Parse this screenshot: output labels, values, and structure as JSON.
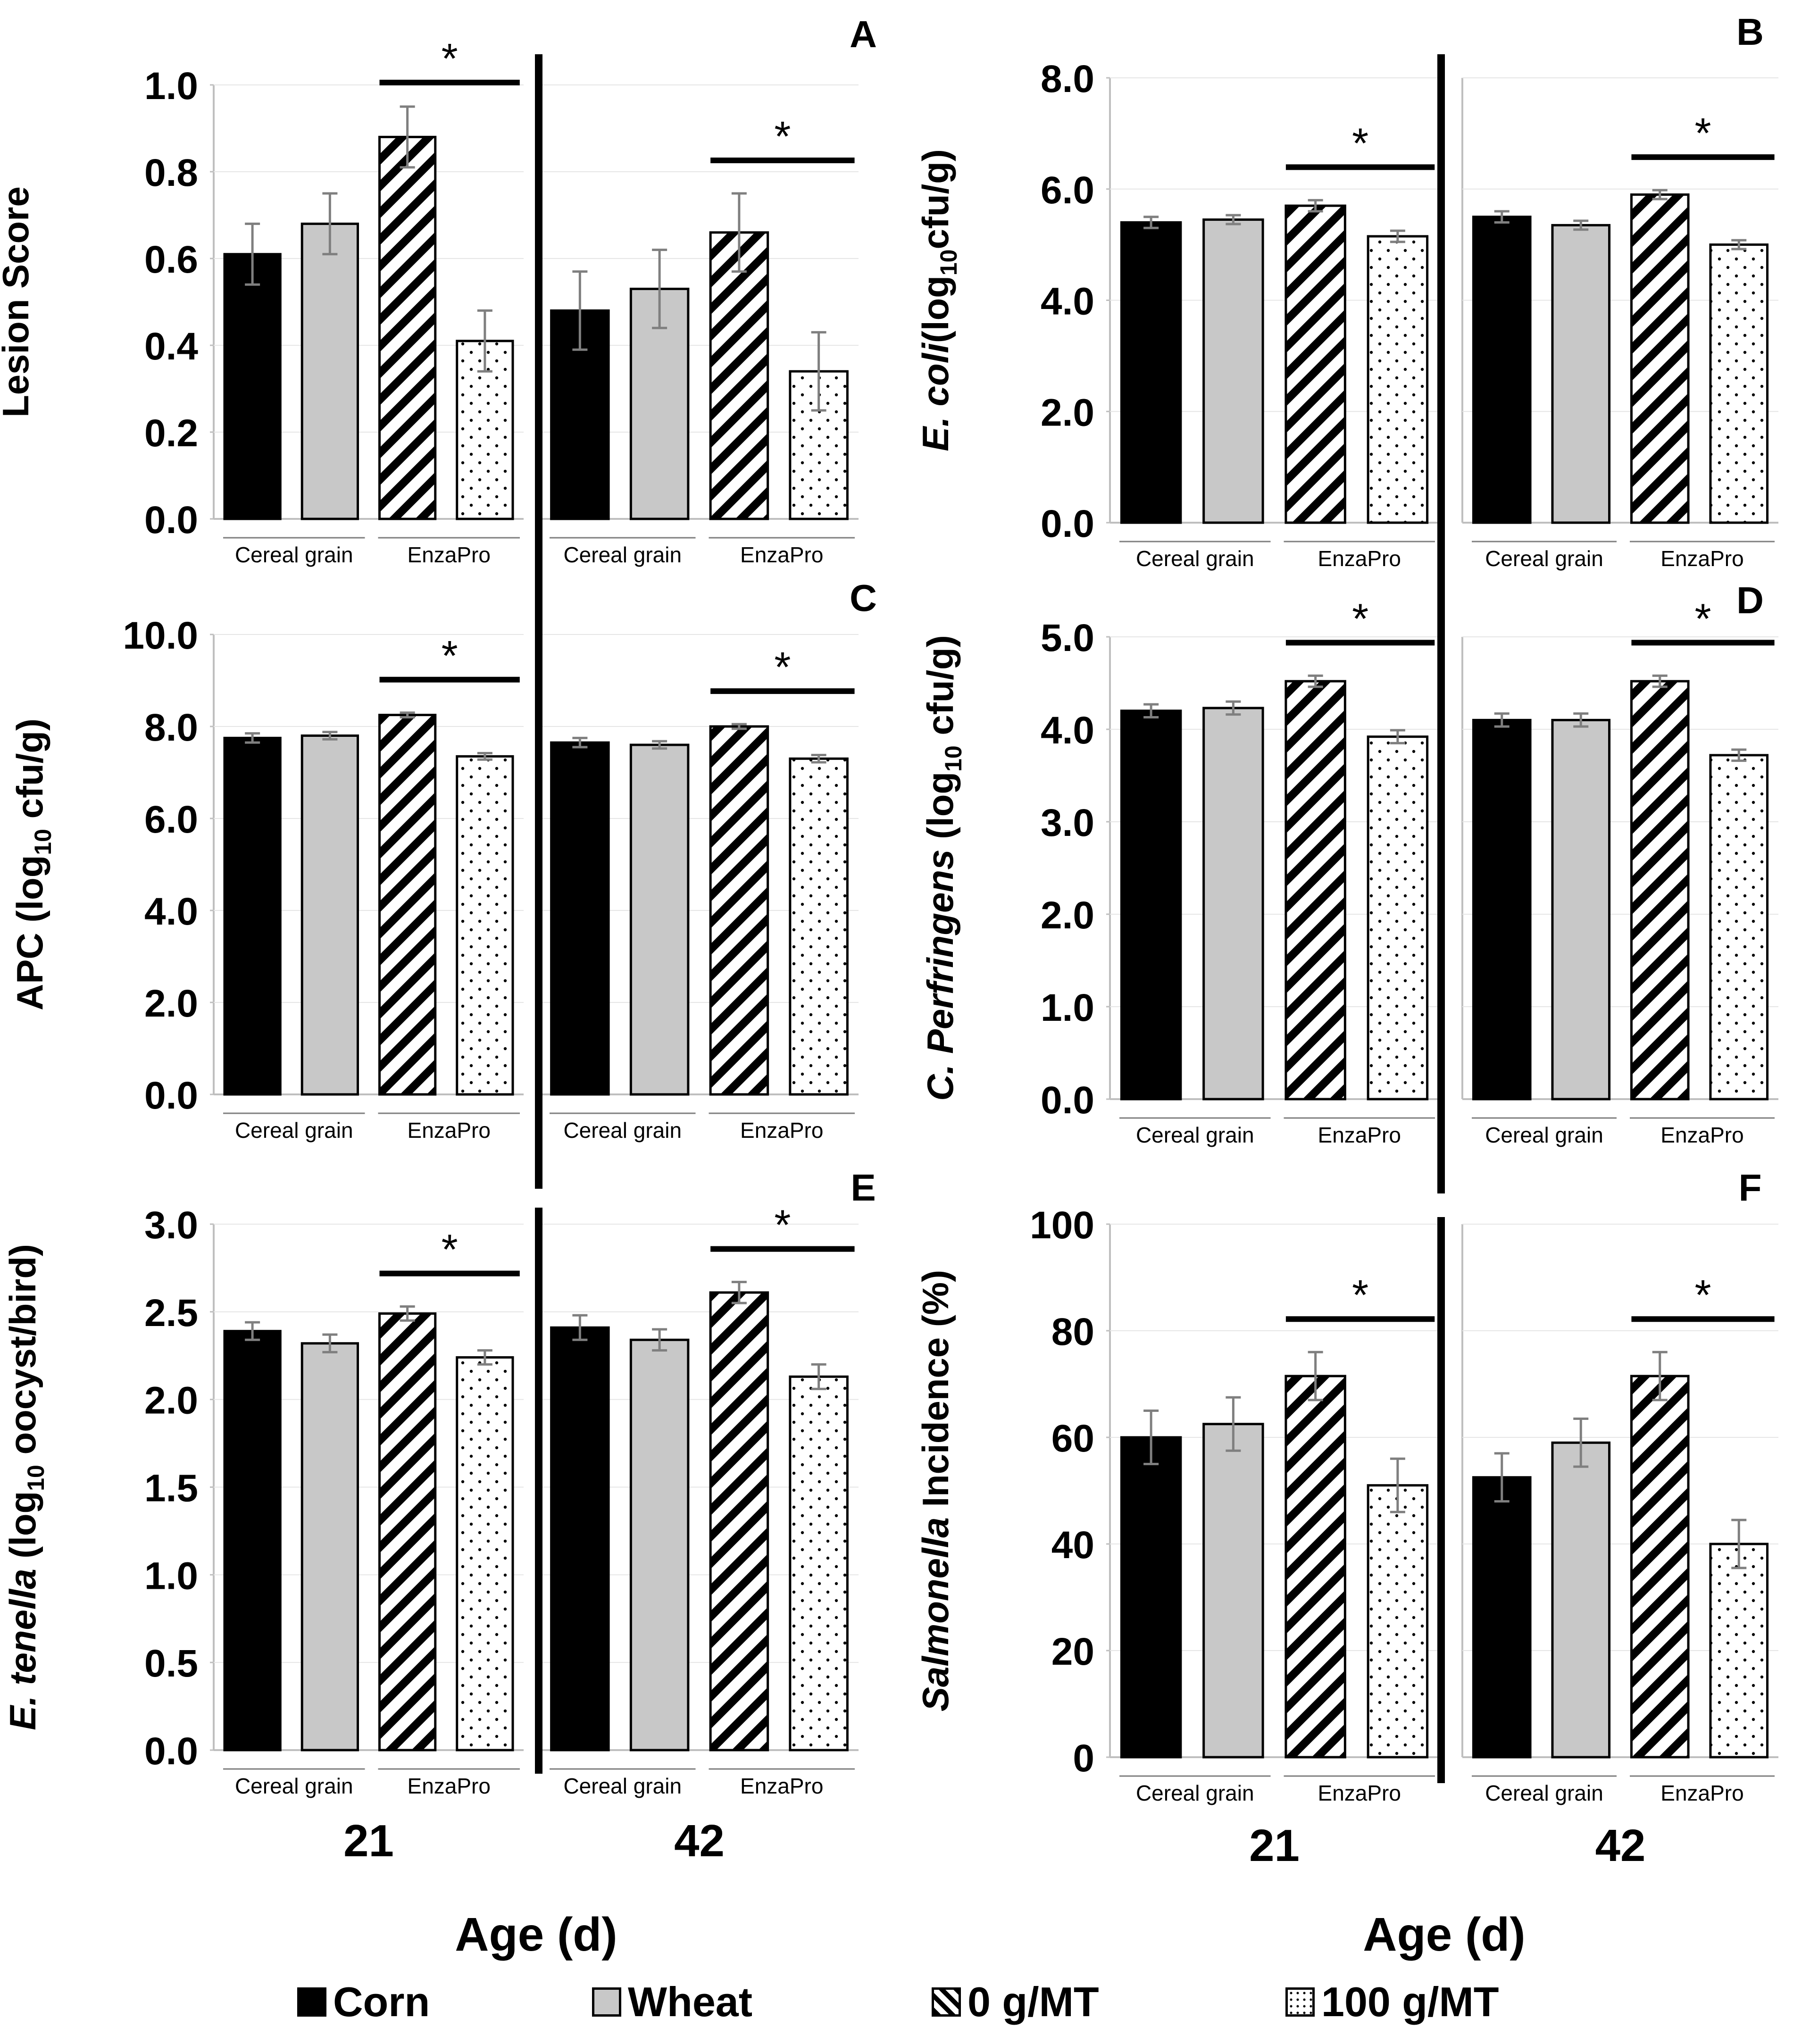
{
  "colors": {
    "corn": "#000000",
    "wheat": "#c8c8c8",
    "bar_stroke": "#000000",
    "error_bar": "#7f7f7f"
  },
  "legend": [
    {
      "label": "Corn",
      "fill": "solid-black"
    },
    {
      "label": "Wheat",
      "fill": "solid-gray"
    },
    {
      "label": "0 g/MT",
      "fill": "diagonal-stripes"
    },
    {
      "label": "100 g/MT",
      "fill": "dots"
    }
  ],
  "common": {
    "age_labels": [
      "21",
      "42"
    ],
    "group_labels": [
      "Cereal grain",
      "EnzaPro"
    ],
    "x_title": "Age (d)",
    "significance_mark": "*"
  },
  "chart_data": [
    {
      "panel": "A",
      "type": "bar",
      "ylabel": "Lesion Score",
      "ylim": [
        0,
        1.0
      ],
      "yticks": [
        "0.0",
        "0.2",
        "0.4",
        "0.6",
        "0.8",
        "1.0"
      ],
      "series": [
        {
          "name": "Corn",
          "values": [
            0.61,
            0.48
          ],
          "errors": [
            0.07,
            0.09
          ]
        },
        {
          "name": "Wheat",
          "values": [
            0.68,
            0.53
          ],
          "errors": [
            0.07,
            0.09
          ]
        },
        {
          "name": "0 g/MT",
          "values": [
            0.88,
            0.66
          ],
          "errors": [
            0.07,
            0.09
          ]
        },
        {
          "name": "100 g/MT",
          "values": [
            0.41,
            0.34
          ],
          "errors": [
            0.07,
            0.09
          ]
        }
      ]
    },
    {
      "panel": "B",
      "type": "bar",
      "ylabel_parts": [
        "E. coli",
        "(log",
        "10",
        "cfu/g)"
      ],
      "ylim": [
        0,
        8.0
      ],
      "yticks": [
        "0.0",
        "2.0",
        "4.0",
        "6.0",
        "8.0"
      ],
      "series": [
        {
          "name": "Corn",
          "values": [
            5.4,
            5.5
          ],
          "errors": [
            0.1,
            0.1
          ]
        },
        {
          "name": "Wheat",
          "values": [
            5.45,
            5.35
          ],
          "errors": [
            0.08,
            0.08
          ]
        },
        {
          "name": "0 g/MT",
          "values": [
            5.7,
            5.9
          ],
          "errors": [
            0.1,
            0.08
          ]
        },
        {
          "name": "100 g/MT",
          "values": [
            5.15,
            5.0
          ],
          "errors": [
            0.1,
            0.08
          ]
        }
      ]
    },
    {
      "panel": "C",
      "type": "bar",
      "ylabel_parts": [
        "APC (log",
        "10",
        " cfu/g)"
      ],
      "ylim": [
        0,
        10.0
      ],
      "yticks": [
        "0.0",
        "2.0",
        "4.0",
        "6.0",
        "8.0",
        "10.0"
      ],
      "series": [
        {
          "name": "Corn",
          "values": [
            7.75,
            7.65
          ],
          "errors": [
            0.1,
            0.1
          ]
        },
        {
          "name": "Wheat",
          "values": [
            7.8,
            7.6
          ],
          "errors": [
            0.08,
            0.08
          ]
        },
        {
          "name": "0 g/MT",
          "values": [
            8.25,
            8.0
          ],
          "errors": [
            0.05,
            0.05
          ]
        },
        {
          "name": "100 g/MT",
          "values": [
            7.35,
            7.3
          ],
          "errors": [
            0.07,
            0.08
          ]
        }
      ]
    },
    {
      "panel": "D",
      "type": "bar",
      "ylabel_parts": [
        "C. Perfringens",
        " (log",
        "10",
        " cfu/g)"
      ],
      "ylim": [
        0,
        5.0
      ],
      "yticks": [
        "0.0",
        "1.0",
        "2.0",
        "3.0",
        "4.0",
        "5.0"
      ],
      "series": [
        {
          "name": "Corn",
          "values": [
            4.2,
            4.1
          ],
          "errors": [
            0.07,
            0.07
          ]
        },
        {
          "name": "Wheat",
          "values": [
            4.23,
            4.1
          ],
          "errors": [
            0.07,
            0.07
          ]
        },
        {
          "name": "0 g/MT",
          "values": [
            4.52,
            4.52
          ],
          "errors": [
            0.06,
            0.06
          ]
        },
        {
          "name": "100 g/MT",
          "values": [
            3.92,
            3.72
          ],
          "errors": [
            0.07,
            0.06
          ]
        }
      ]
    },
    {
      "panel": "E",
      "type": "bar",
      "ylabel_parts": [
        "E. tenella",
        " (log",
        "10",
        " oocyst/bird)"
      ],
      "ylim": [
        0,
        3.0
      ],
      "yticks": [
        "0.0",
        "0.5",
        "1.0",
        "1.5",
        "2.0",
        "2.5",
        "3.0"
      ],
      "series": [
        {
          "name": "Corn",
          "values": [
            2.39,
            2.41
          ],
          "errors": [
            0.05,
            0.07
          ]
        },
        {
          "name": "Wheat",
          "values": [
            2.32,
            2.34
          ],
          "errors": [
            0.05,
            0.06
          ]
        },
        {
          "name": "0 g/MT",
          "values": [
            2.49,
            2.61
          ],
          "errors": [
            0.04,
            0.06
          ]
        },
        {
          "name": "100 g/MT",
          "values": [
            2.24,
            2.13
          ],
          "errors": [
            0.04,
            0.07
          ]
        }
      ]
    },
    {
      "panel": "F",
      "type": "bar",
      "ylabel_parts": [
        "Salmonella",
        " Incidence (%)"
      ],
      "ylim": [
        0,
        100
      ],
      "yticks": [
        "0",
        "20",
        "40",
        "60",
        "80",
        "100"
      ],
      "series": [
        {
          "name": "Corn",
          "values": [
            60,
            52.5
          ],
          "errors": [
            5,
            4.5
          ]
        },
        {
          "name": "Wheat",
          "values": [
            62.5,
            59
          ],
          "errors": [
            5,
            4.5
          ]
        },
        {
          "name": "0 g/MT",
          "values": [
            71.5,
            71.5
          ],
          "errors": [
            4.5,
            4.5
          ]
        },
        {
          "name": "100 g/MT",
          "values": [
            51,
            40
          ],
          "errors": [
            5,
            4.5
          ]
        }
      ]
    }
  ]
}
